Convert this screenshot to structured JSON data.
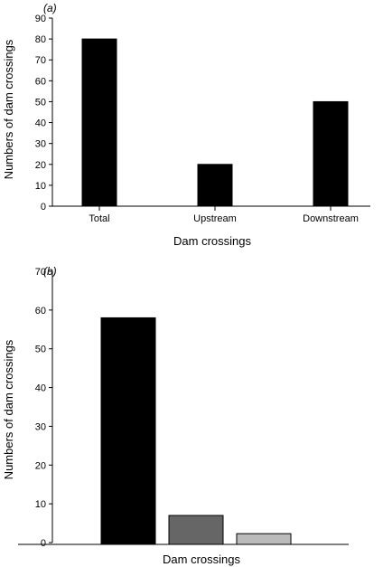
{
  "chart_data": [
    {
      "type": "bar",
      "panel_label": "(a)",
      "categories": [
        "Total",
        "Upstream",
        "Downstream"
      ],
      "values": [
        80,
        20,
        50
      ],
      "xlabel": "Dam crossings",
      "ylabel": "Numbers of dam crossings",
      "ylim": [
        0,
        90
      ],
      "yticks": [
        0,
        10,
        20,
        30,
        40,
        50,
        60,
        70,
        80,
        90
      ],
      "colors": [
        "#000000",
        "#000000",
        "#000000"
      ],
      "grid": false
    },
    {
      "type": "bar",
      "panel_label": "(b)",
      "categories": [
        "",
        "",
        ""
      ],
      "values": [
        58,
        7,
        2.3
      ],
      "xlabel": "Dam crossings",
      "ylabel": "Numbers of dam crossings",
      "ylim": [
        0,
        70
      ],
      "yticks": [
        0,
        10,
        20,
        30,
        40,
        50,
        60,
        70
      ],
      "colors": [
        "#000000",
        "#666666",
        "#bbbbbb"
      ],
      "grid": false
    }
  ]
}
